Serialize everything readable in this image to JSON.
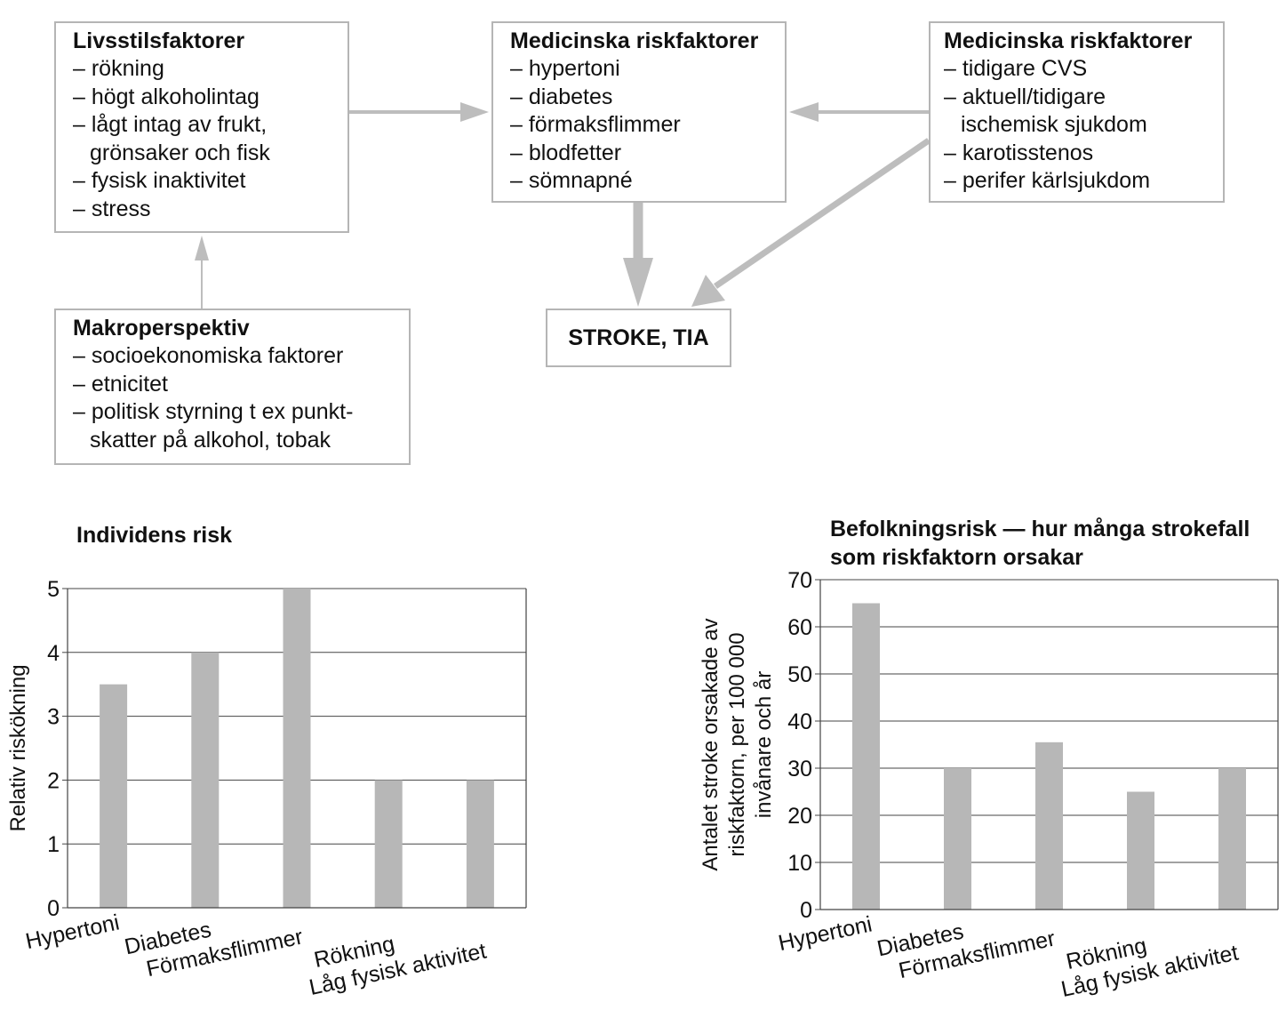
{
  "diagram": {
    "lifestyle": {
      "title": "Livsstilsfaktorer",
      "items": [
        "– rökning",
        "– högt alkoholintag",
        "– lågt intag av frukt, grönsaker och fisk",
        "– fysisk inaktivitet",
        "– stress"
      ]
    },
    "medical": {
      "title": "Medicinska riskfaktorer",
      "items": [
        "– hypertoni",
        "– diabetes",
        "– förmaksflimmer",
        "– blodfetter",
        "– sömnapné"
      ]
    },
    "medical_vascular": {
      "title": "Medicinska riskfaktorer",
      "items": [
        "– tidigare CVS",
        "– aktuell/tidigare ischemisk sjukdom",
        "– karotisstenos",
        "– perifer kärlsjukdom"
      ]
    },
    "macro": {
      "title": "Makroperspektiv",
      "items": [
        "– socioekonomiska faktorer",
        "– etnicitet",
        "– politisk styrning t ex punkt-skatter på alkohol, tobak"
      ]
    },
    "outcome": {
      "label": "STROKE, TIA"
    },
    "arrow_color": "#bdbdbd"
  },
  "chart_data": [
    {
      "type": "bar",
      "title": "Individens risk",
      "ylabel": "Relativ riskökning",
      "categories": [
        "Hypertoni",
        "Diabetes",
        "Förmaksflimmer",
        "Rökning",
        "Låg fysisk aktivitet"
      ],
      "values": [
        3.5,
        4,
        5,
        2,
        2
      ],
      "ylim": [
        0,
        5
      ],
      "yticks": [
        0,
        1,
        2,
        3,
        4,
        5
      ],
      "grid": true,
      "bar_color": "#b7b7b7"
    },
    {
      "type": "bar",
      "title": "Befolkningsrisk — hur många strokefall som riskfaktorn orsakar",
      "ylabel": "Antalet stroke orsakade av riskfaktorn, per 100 000 invånare och år",
      "categories": [
        "Hypertoni",
        "Diabetes",
        "Förmaksflimmer",
        "Rökning",
        "Låg fysisk aktivitet"
      ],
      "values": [
        65,
        30,
        35.5,
        25,
        30
      ],
      "ylim": [
        0,
        70
      ],
      "yticks": [
        0,
        10,
        20,
        30,
        40,
        50,
        60,
        70
      ],
      "grid": true,
      "bar_color": "#b7b7b7"
    }
  ]
}
